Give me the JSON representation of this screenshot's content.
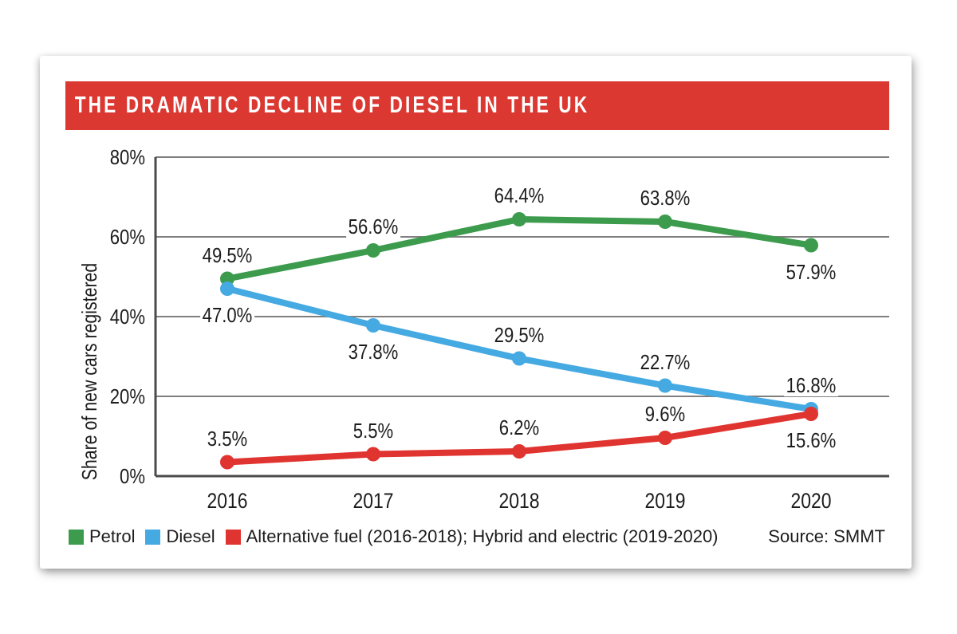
{
  "chart_data": {
    "type": "line",
    "title": "THE DRAMATIC DECLINE OF DIESEL IN THE UK",
    "ylabel": "Share of new cars registered",
    "x_categories": [
      "2016",
      "2017",
      "2018",
      "2019",
      "2020"
    ],
    "ylim": [
      0,
      80
    ],
    "y_ticks": [
      {
        "value": 0,
        "label": "0%"
      },
      {
        "value": 20,
        "label": "20%"
      },
      {
        "value": 40,
        "label": "40%"
      },
      {
        "value": 60,
        "label": "60%"
      },
      {
        "value": 80,
        "label": "80%"
      }
    ],
    "grid": "horizontal",
    "legend_position": "bottom",
    "source": "Source: SMMT",
    "series": [
      {
        "key": "petrol",
        "name": "Petrol",
        "color": "#3d9b4d",
        "values": [
          49.5,
          56.6,
          64.4,
          63.8,
          57.9
        ],
        "labels": [
          "49.5%",
          "56.6%",
          "64.4%",
          "63.8%",
          "57.9%"
        ],
        "label_positions": [
          "above",
          "above",
          "above",
          "above",
          "below"
        ]
      },
      {
        "key": "diesel",
        "name": "Diesel",
        "color": "#45a9e2",
        "values": [
          47.0,
          37.8,
          29.5,
          22.7,
          16.8
        ],
        "labels": [
          "47.0%",
          "37.8%",
          "29.5%",
          "22.7%",
          "16.8%"
        ],
        "label_positions": [
          "below",
          "below",
          "above",
          "above",
          "above"
        ]
      },
      {
        "key": "alt-fuel",
        "name": "Alternative fuel (2016-2018); Hybrid and electric (2019-2020)",
        "color": "#e03430",
        "values": [
          3.5,
          5.5,
          6.2,
          9.6,
          15.6
        ],
        "labels": [
          "3.5%",
          "5.5%",
          "6.2%",
          "9.6%",
          "15.6%"
        ],
        "label_positions": [
          "above",
          "above",
          "above",
          "above",
          "below"
        ]
      }
    ]
  },
  "colors": {
    "banner_background": "#db3832",
    "title_text": "#ffffff",
    "grid_line": "#7f7f7f",
    "axis_line": "#4b4b4b",
    "label_text": "#1e1c1c"
  }
}
